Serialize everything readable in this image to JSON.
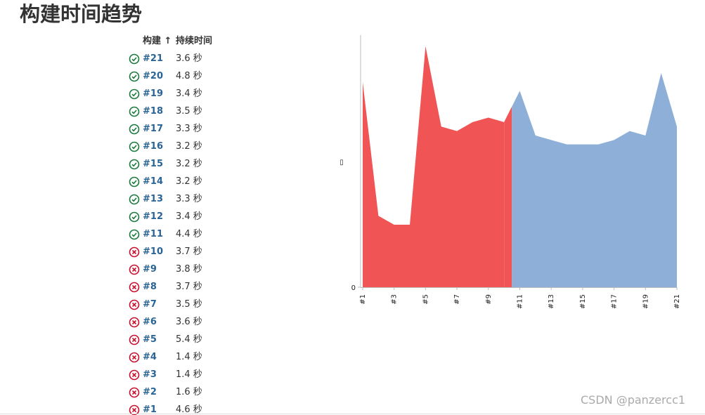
{
  "header": {
    "title": "构建时间趋势"
  },
  "table": {
    "columns": [
      "构建 ↑",
      "持续时间"
    ],
    "rows": [
      {
        "icon": "ok",
        "build": "#21",
        "duration": "3.6 秒"
      },
      {
        "icon": "ok",
        "build": "#20",
        "duration": "4.8 秒"
      },
      {
        "icon": "ok",
        "build": "#19",
        "duration": "3.4 秒"
      },
      {
        "icon": "ok",
        "build": "#18",
        "duration": "3.5 秒"
      },
      {
        "icon": "ok",
        "build": "#17",
        "duration": "3.3 秒"
      },
      {
        "icon": "ok",
        "build": "#16",
        "duration": "3.2 秒"
      },
      {
        "icon": "ok",
        "build": "#15",
        "duration": "3.2 秒"
      },
      {
        "icon": "ok",
        "build": "#14",
        "duration": "3.2 秒"
      },
      {
        "icon": "ok",
        "build": "#13",
        "duration": "3.3 秒"
      },
      {
        "icon": "ok",
        "build": "#12",
        "duration": "3.4 秒"
      },
      {
        "icon": "ok",
        "build": "#11",
        "duration": "4.4 秒"
      },
      {
        "icon": "fail",
        "build": "#10",
        "duration": "3.7 秒"
      },
      {
        "icon": "fail",
        "build": "#9",
        "duration": "3.8 秒"
      },
      {
        "icon": "fail",
        "build": "#8",
        "duration": "3.7 秒"
      },
      {
        "icon": "fail",
        "build": "#7",
        "duration": "3.5 秒"
      },
      {
        "icon": "fail",
        "build": "#6",
        "duration": "3.6 秒"
      },
      {
        "icon": "fail",
        "build": "#5",
        "duration": "5.4 秒"
      },
      {
        "icon": "fail",
        "build": "#4",
        "duration": "1.4 秒"
      },
      {
        "icon": "fail",
        "build": "#3",
        "duration": "1.4 秒"
      },
      {
        "icon": "fail",
        "build": "#2",
        "duration": "1.6 秒"
      },
      {
        "icon": "fail",
        "build": "#1",
        "duration": "4.6 秒"
      }
    ]
  },
  "chart_data": {
    "type": "area",
    "ylabel": "▯",
    "categories": [
      "#1",
      null,
      "#3",
      null,
      "#5",
      null,
      "#7",
      null,
      "#9",
      null,
      "#11",
      null,
      "#13",
      null,
      "#15",
      null,
      "#17",
      null,
      "#19",
      null,
      "#21"
    ],
    "series": [
      {
        "color": "#f05454",
        "values": [
          4.6,
          1.6,
          1.4,
          1.4,
          5.4,
          3.6,
          3.5,
          3.7,
          3.8,
          3.7,
          null,
          null,
          null,
          null,
          null,
          null,
          null,
          null,
          null,
          null,
          null
        ]
      },
      {
        "color": "#8eb0d8",
        "values": [
          null,
          null,
          null,
          null,
          null,
          null,
          null,
          null,
          null,
          null,
          4.4,
          3.4,
          3.3,
          3.2,
          3.2,
          3.2,
          3.3,
          3.5,
          3.4,
          4.8,
          3.6
        ]
      }
    ],
    "ylim": [
      0,
      5.65
    ],
    "yticks": [
      0
    ]
  },
  "watermark": "CSDN @panzercc1"
}
